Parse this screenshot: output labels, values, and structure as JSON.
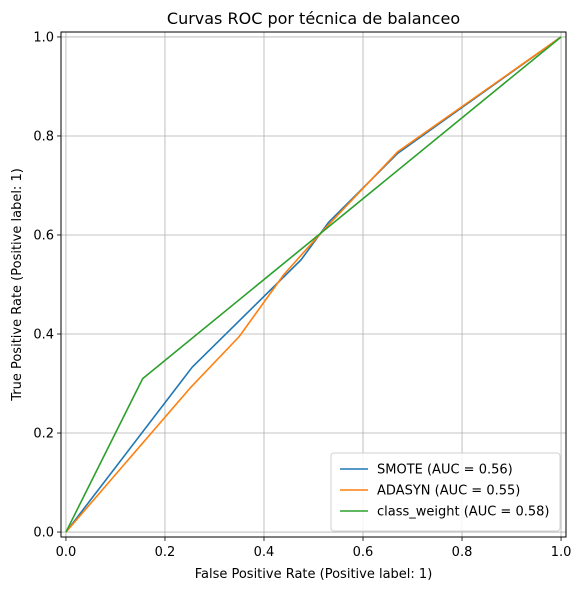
{
  "chart_data": {
    "type": "line",
    "title": "Curvas ROC por técnica de balanceo",
    "xlabel": "False Positive Rate (Positive label: 1)",
    "ylabel": "True Positive Rate (Positive label: 1)",
    "xlim": [
      -0.01,
      1.01
    ],
    "ylim": [
      -0.01,
      1.01
    ],
    "xticks": [
      0.0,
      0.2,
      0.4,
      0.6,
      0.8,
      1.0
    ],
    "yticks": [
      0.0,
      0.2,
      0.4,
      0.6,
      0.8,
      1.0
    ],
    "xtick_labels": [
      "0.0",
      "0.2",
      "0.4",
      "0.6",
      "0.8",
      "1.0"
    ],
    "ytick_labels": [
      "0.0",
      "0.2",
      "0.4",
      "0.6",
      "0.8",
      "1.0"
    ],
    "grid": true,
    "legend_position": "bottom-right",
    "series": [
      {
        "name": "SMOTE (AUC = 0.56)",
        "color": "#1f77b4",
        "x": [
          0.0,
          0.255,
          0.475,
          0.53,
          0.67,
          1.0
        ],
        "y": [
          0.0,
          0.333,
          0.55,
          0.625,
          0.765,
          1.0
        ]
      },
      {
        "name": "ADASYN (AUC = 0.55)",
        "color": "#ff7f0e",
        "x": [
          0.0,
          0.25,
          0.35,
          0.44,
          0.525,
          0.67,
          1.0
        ],
        "y": [
          0.0,
          0.29,
          0.395,
          0.52,
          0.615,
          0.768,
          1.0
        ]
      },
      {
        "name": "class_weight (AUC = 0.58)",
        "color": "#2ca02c",
        "x": [
          0.0,
          0.155,
          1.0
        ],
        "y": [
          0.0,
          0.31,
          1.0
        ]
      }
    ]
  }
}
